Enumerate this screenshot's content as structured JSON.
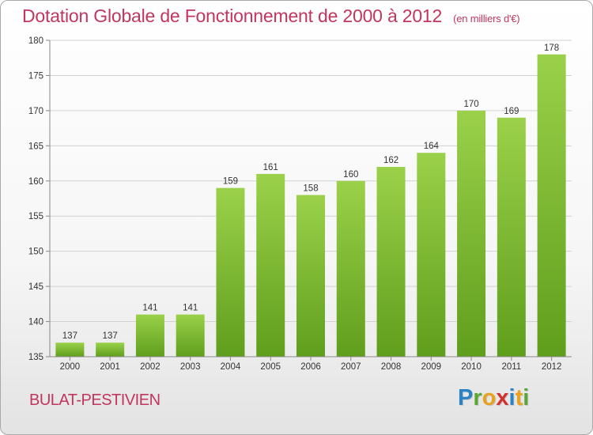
{
  "header": {
    "title": "Dotation Globale de Fonctionnement de 2000 à 2012",
    "unit": "(en milliers d'€)"
  },
  "footer": {
    "commune": "BULAT-PESTIVIEN"
  },
  "logo": {
    "letters": [
      {
        "ch": "P",
        "color": "#2a83c6"
      },
      {
        "ch": "r",
        "color": "#5aa632"
      },
      {
        "ch": "o",
        "color": "#e8a21e"
      },
      {
        "ch": "x",
        "color": "#d2322d"
      },
      {
        "ch": "i",
        "color": "#2a83c6"
      },
      {
        "ch": "t",
        "color": "#e8a21e"
      },
      {
        "ch": "i",
        "color": "#5aa632"
      }
    ]
  },
  "chart_data": {
    "type": "bar",
    "categories": [
      "2000",
      "2001",
      "2002",
      "2003",
      "2004",
      "2005",
      "2006",
      "2007",
      "2008",
      "2009",
      "2010",
      "2011",
      "2012"
    ],
    "values": [
      137,
      137,
      141,
      141,
      159,
      161,
      158,
      160,
      162,
      164,
      170,
      169,
      178
    ],
    "ylim": [
      135,
      180
    ],
    "yticks": [
      135,
      140,
      145,
      150,
      155,
      160,
      165,
      170,
      175,
      180
    ],
    "grid": true,
    "data_labels": true,
    "bar_color": "#7fbd2f"
  }
}
